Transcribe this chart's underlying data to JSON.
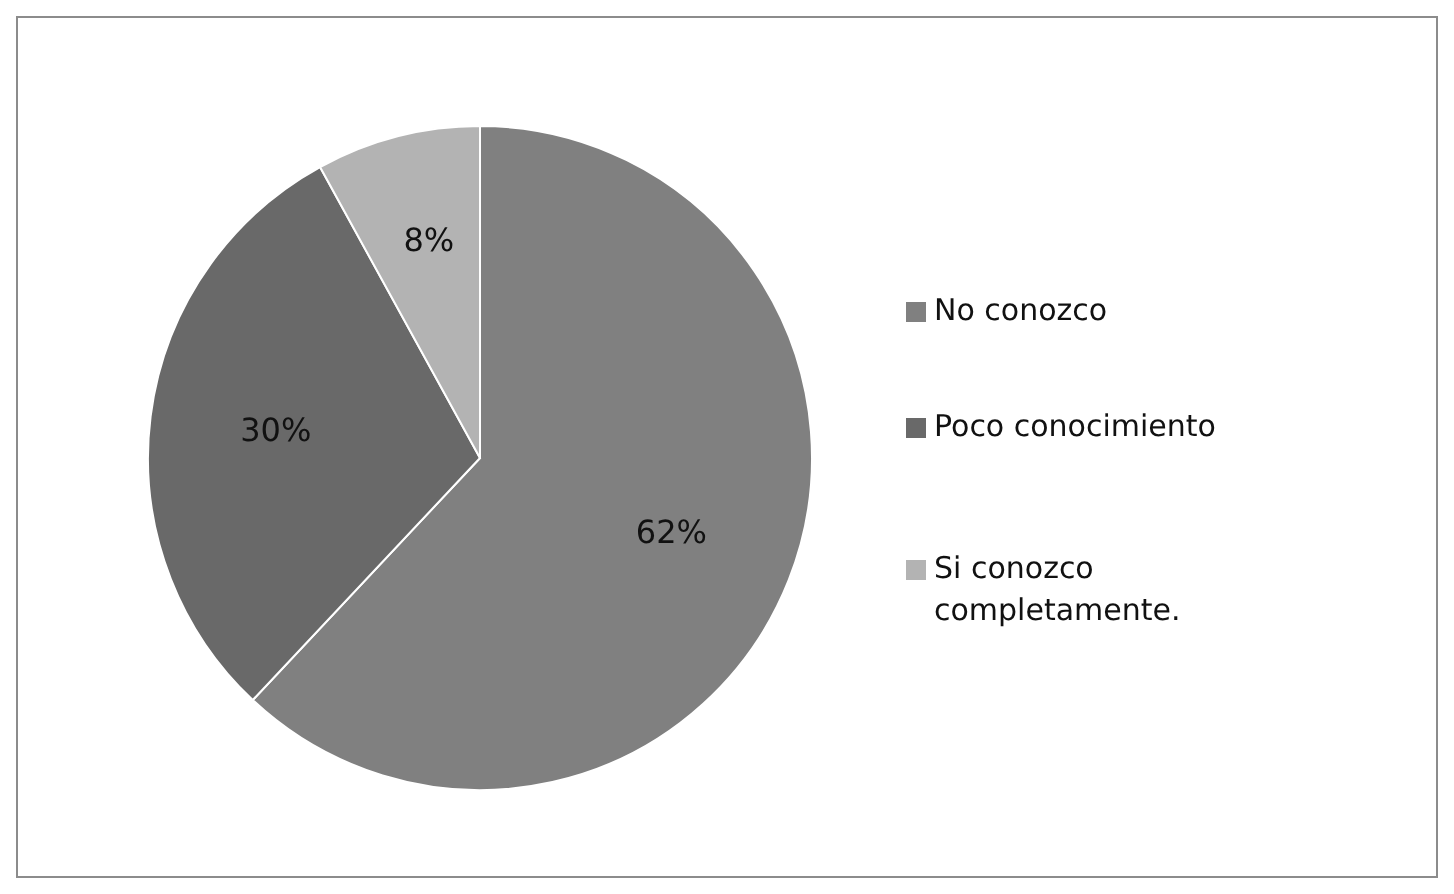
{
  "chart_data": {
    "type": "pie",
    "categories": [
      "No conozco",
      "Poco conocimiento",
      "Si conozco completamente."
    ],
    "values": [
      62,
      30,
      8
    ],
    "colors": [
      "#808080",
      "#696969",
      "#b3b3b3"
    ],
    "value_labels": [
      "62%",
      "30%",
      "8%"
    ],
    "legend": "right"
  }
}
